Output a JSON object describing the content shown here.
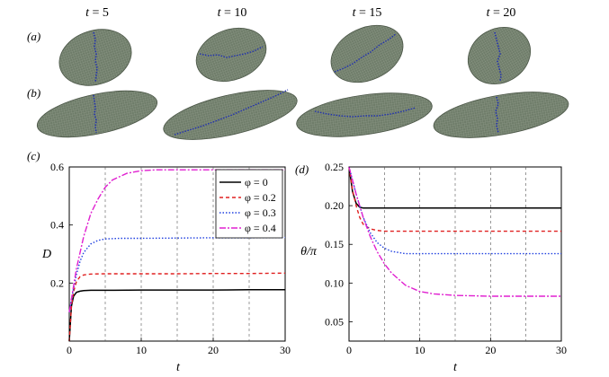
{
  "figure": {
    "time_headers": [
      {
        "var": "t",
        "eq": " = 5"
      },
      {
        "var": "t",
        "eq": " = 10"
      },
      {
        "var": "t",
        "eq": " = 15"
      },
      {
        "var": "t",
        "eq": " = 20"
      }
    ],
    "panel_labels": {
      "a": "(a)",
      "b": "(b)",
      "c": "(c)",
      "d": "(d)"
    },
    "cell_color": "#6f7d6a",
    "marker_color": "#1f2fb0"
  },
  "chart_data": [
    {
      "type": "line",
      "panel": "(c)",
      "ylabel": "D",
      "xlabel": "t",
      "xlim": [
        0,
        30
      ],
      "ylim": [
        0,
        0.6
      ],
      "xticks": [
        0,
        10,
        20,
        30
      ],
      "yticks": [
        0.2,
        0.4,
        0.6
      ],
      "xtick_labels": [
        "0",
        "10",
        "20",
        "30"
      ],
      "ytick_labels": [
        "0.2",
        "0.4",
        "0.6"
      ],
      "vgrid_dashed_at": [
        5,
        10,
        15,
        20,
        25
      ],
      "legend_position": "top-right",
      "series": [
        {
          "name": "φ = 0",
          "color": "#000000",
          "dash": "",
          "x": [
            0,
            0.3,
            0.6,
            1,
            1.5,
            2,
            3,
            5,
            10,
            15,
            20,
            25,
            30
          ],
          "y": [
            0,
            0.12,
            0.155,
            0.168,
            0.172,
            0.174,
            0.175,
            0.175,
            0.176,
            0.176,
            0.176,
            0.177,
            0.177
          ]
        },
        {
          "name": "φ = 0.2",
          "color": "#e02020",
          "dash": "4,3",
          "x": [
            0,
            0.3,
            0.6,
            1,
            1.5,
            2,
            3,
            5,
            10,
            15,
            20,
            25,
            30
          ],
          "y": [
            0,
            0.12,
            0.17,
            0.205,
            0.222,
            0.228,
            0.231,
            0.232,
            0.232,
            0.232,
            0.233,
            0.233,
            0.234
          ]
        },
        {
          "name": "φ = 0.3",
          "color": "#2040e0",
          "dash": "1.5,2",
          "x": [
            0,
            0.5,
            1,
            1.5,
            2,
            3,
            4,
            5,
            7,
            10,
            15,
            20,
            25,
            30
          ],
          "y": [
            0.1,
            0.17,
            0.23,
            0.275,
            0.305,
            0.335,
            0.347,
            0.352,
            0.354,
            0.354,
            0.355,
            0.356,
            0.356,
            0.357
          ]
        },
        {
          "name": "φ = 0.4",
          "color": "#e020d0",
          "dash": "7,2,2,2",
          "x": [
            0,
            1,
            2,
            3,
            4,
            5,
            6,
            8,
            10,
            12,
            15,
            20,
            25,
            30
          ],
          "y": [
            0.1,
            0.25,
            0.36,
            0.44,
            0.49,
            0.53,
            0.555,
            0.578,
            0.587,
            0.59,
            0.59,
            0.59,
            0.59,
            0.59
          ]
        }
      ]
    },
    {
      "type": "line",
      "panel": "(d)",
      "ylabel": "θ/π",
      "xlabel": "t",
      "xlim": [
        0,
        30
      ],
      "ylim": [
        0.025,
        0.25
      ],
      "xticks": [
        0,
        10,
        20,
        30
      ],
      "yticks": [
        0.05,
        0.1,
        0.15,
        0.2,
        0.25
      ],
      "xtick_labels": [
        "0",
        "10",
        "20",
        "30"
      ],
      "ytick_labels": [
        "0.05",
        "0.10",
        "0.15",
        "0.20",
        "0.25"
      ],
      "vgrid_dashed_at": [
        5,
        10,
        15,
        20,
        25
      ],
      "series": [
        {
          "name": "φ = 0",
          "color": "#000000",
          "dash": "",
          "x": [
            0,
            0.5,
            1,
            1.5,
            2,
            3,
            5,
            10,
            20,
            30
          ],
          "y": [
            0.25,
            0.218,
            0.203,
            0.198,
            0.197,
            0.197,
            0.197,
            0.197,
            0.197,
            0.197
          ]
        },
        {
          "name": "φ = 0.2",
          "color": "#e02020",
          "dash": "4,3",
          "x": [
            0,
            0.5,
            1,
            1.5,
            2,
            3,
            4,
            5,
            10,
            20,
            30
          ],
          "y": [
            0.25,
            0.22,
            0.2,
            0.185,
            0.176,
            0.17,
            0.168,
            0.167,
            0.167,
            0.167,
            0.167
          ]
        },
        {
          "name": "φ = 0.3",
          "color": "#2040e0",
          "dash": "1.5,2",
          "x": [
            0,
            1,
            2,
            3,
            4,
            5,
            6,
            8,
            10,
            20,
            30
          ],
          "y": [
            0.25,
            0.215,
            0.185,
            0.165,
            0.152,
            0.145,
            0.141,
            0.138,
            0.138,
            0.138,
            0.138
          ]
        },
        {
          "name": "φ = 0.4",
          "color": "#e020d0",
          "dash": "7,2,2,2",
          "x": [
            0,
            1,
            2,
            3,
            4,
            5,
            6,
            8,
            10,
            12,
            15,
            20,
            25,
            30
          ],
          "y": [
            0.25,
            0.215,
            0.185,
            0.16,
            0.14,
            0.125,
            0.113,
            0.097,
            0.089,
            0.086,
            0.084,
            0.083,
            0.083,
            0.083
          ]
        }
      ]
    }
  ]
}
